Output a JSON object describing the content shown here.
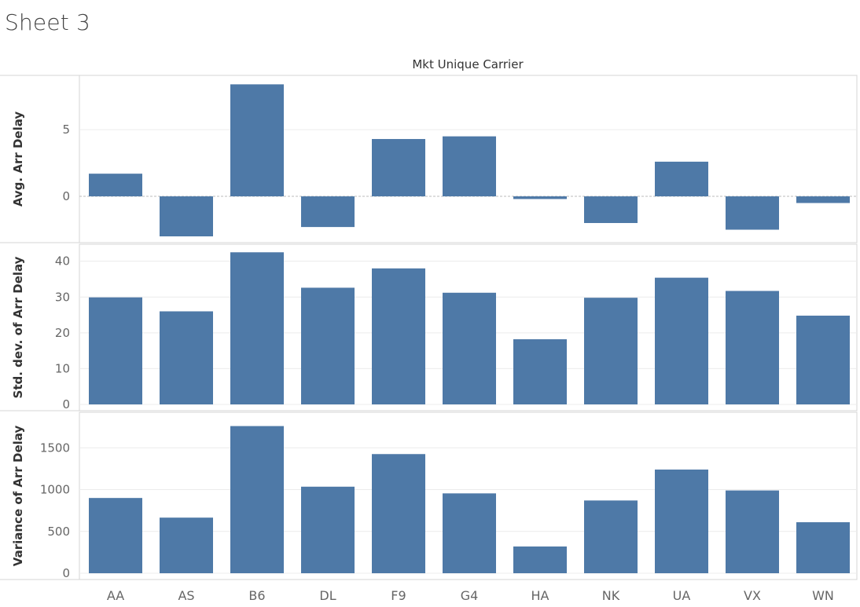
{
  "sheet": {
    "title": "Sheet 3"
  },
  "chart_data": {
    "type": "bar",
    "column_header": "Mkt Unique Carrier",
    "categories": [
      "AA",
      "AS",
      "B6",
      "DL",
      "F9",
      "G4",
      "HA",
      "NK",
      "UA",
      "VX",
      "WN"
    ],
    "bar_color": "#4e79a7",
    "grid": true,
    "panes": [
      {
        "ylabel": "Avg. Arr Delay",
        "ylim": [
          -3.0,
          8.6
        ],
        "yticks": [
          0,
          5
        ],
        "zero_line": true,
        "values": [
          1.7,
          -3.0,
          8.4,
          -2.3,
          4.3,
          4.5,
          -0.2,
          -2.0,
          2.6,
          -2.5,
          -0.5
        ]
      },
      {
        "ylabel": "Std. dev. of Arr Delay",
        "ylim": [
          0,
          43
        ],
        "yticks": [
          0,
          10,
          20,
          30,
          40
        ],
        "values": [
          29.9,
          26.0,
          42.5,
          32.6,
          38.0,
          31.2,
          18.2,
          29.8,
          35.4,
          31.7,
          24.8
        ]
      },
      {
        "ylabel": "Variance of Arr Delay",
        "ylim": [
          0,
          1850
        ],
        "yticks": [
          0,
          500,
          1000,
          1500
        ],
        "values": [
          900,
          665,
          1760,
          1035,
          1425,
          955,
          320,
          870,
          1240,
          990,
          610
        ]
      }
    ]
  }
}
